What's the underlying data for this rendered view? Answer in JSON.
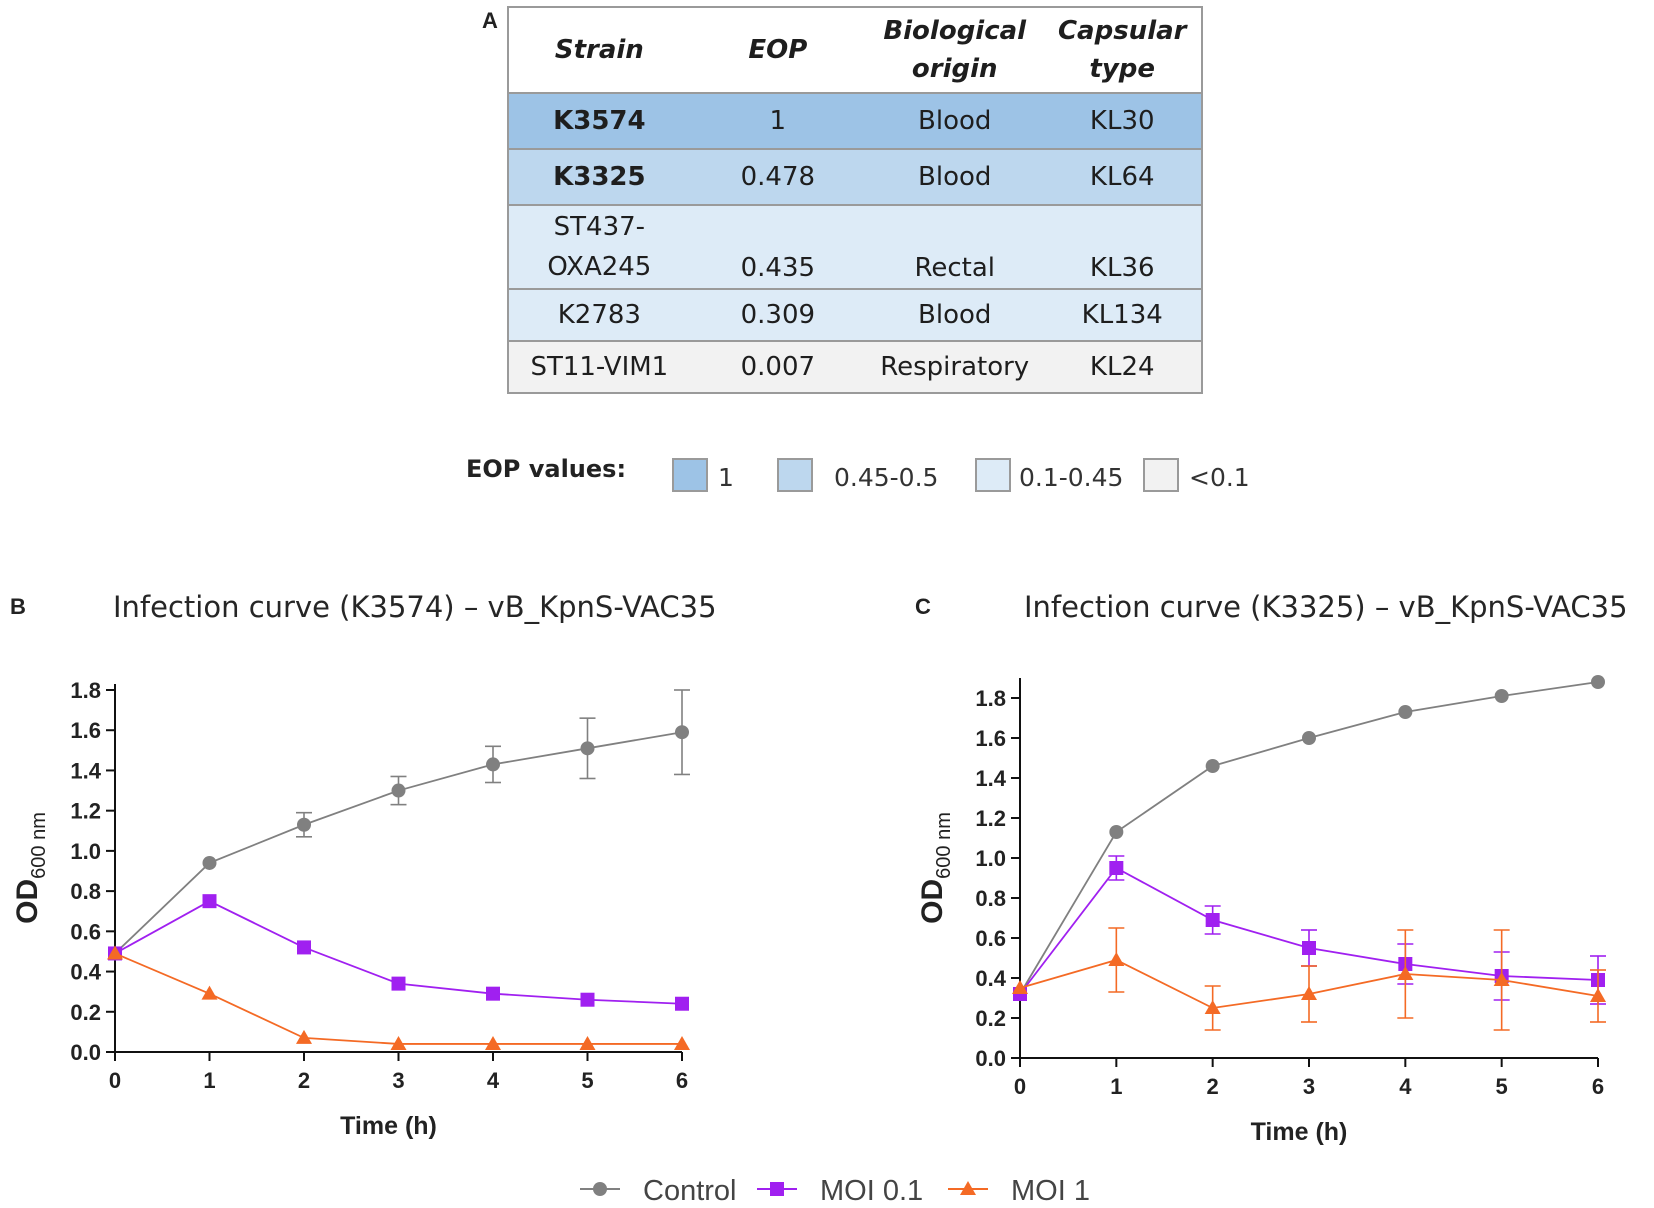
{
  "panel_labels": {
    "a": "A",
    "b": "B",
    "c": "C"
  },
  "table": {
    "headers": {
      "strain": "Strain",
      "eop": "EOP",
      "origin_1": "Biological",
      "origin_2": "origin",
      "capsular_1": "Capsular",
      "capsular_2": "type"
    },
    "rows": [
      {
        "strain_1": "K3574",
        "strain_2": "",
        "eop": "1",
        "origin": "Blood",
        "capsular": "KL30",
        "bold": true,
        "color": "#9dc3e6"
      },
      {
        "strain_1": "K3325",
        "strain_2": "",
        "eop": "0.478",
        "origin": "Blood",
        "capsular": "KL64",
        "bold": true,
        "color": "#bdd7ee"
      },
      {
        "strain_1": "ST437-",
        "strain_2": "OXA245",
        "eop": "0.435",
        "origin": "Rectal",
        "capsular": "KL36",
        "bold": false,
        "color": "#ddebf7"
      },
      {
        "strain_1": "K2783",
        "strain_2": "",
        "eop": "0.309",
        "origin": "Blood",
        "capsular": "KL134",
        "bold": false,
        "color": "#ddebf7"
      },
      {
        "strain_1": "ST11-VIM1",
        "strain_2": "",
        "eop": "0.007",
        "origin": "Respiratory",
        "capsular": "KL24",
        "bold": false,
        "color": "#f2f2f2"
      }
    ]
  },
  "eop_legend": {
    "title": "EOP values:",
    "items": [
      {
        "label": "1",
        "color": "#9dc3e6"
      },
      {
        "label": "0.45-0.5",
        "color": "#bdd7ee"
      },
      {
        "label": "0.1-0.45",
        "color": "#ddebf7"
      },
      {
        "label": "<0.1",
        "color": "#f2f2f2"
      }
    ]
  },
  "series_legend": [
    "Control",
    "MOI 0.1",
    "MOI 1"
  ],
  "series_colors": {
    "Control": "#808080",
    "MOI 0.1": "#a020f0",
    "MOI 1": "#f46a25"
  },
  "chart_data": [
    {
      "type": "line",
      "title": "Infection curve (K3574) – vB_KpnS-VAC35",
      "xlabel": "Time (h)",
      "ylabel": "OD",
      "ylabel_sub": "600 nm",
      "x": [
        0,
        1,
        2,
        3,
        4,
        5,
        6
      ],
      "xlim": [
        0,
        6
      ],
      "ylim": [
        0,
        1.8
      ],
      "yticks": [
        "0.0",
        "0.2",
        "0.4",
        "0.6",
        "0.8",
        "1.0",
        "1.2",
        "1.4",
        "1.6",
        "1.8"
      ],
      "xticks": [
        "0",
        "1",
        "2",
        "3",
        "4",
        "5",
        "6"
      ],
      "series": [
        {
          "name": "Control",
          "marker": "circle",
          "values": [
            0.49,
            0.94,
            1.13,
            1.3,
            1.43,
            1.51,
            1.59
          ],
          "errors": [
            0,
            0,
            0.06,
            0.07,
            0.09,
            0.15,
            0.21
          ]
        },
        {
          "name": "MOI 0.1",
          "marker": "square",
          "values": [
            0.49,
            0.75,
            0.52,
            0.34,
            0.29,
            0.26,
            0.24
          ],
          "errors": [
            0,
            0,
            0,
            0,
            0,
            0,
            0
          ]
        },
        {
          "name": "MOI 1",
          "marker": "triangle",
          "values": [
            0.49,
            0.29,
            0.07,
            0.04,
            0.04,
            0.04,
            0.04
          ],
          "errors": [
            0,
            0,
            0,
            0,
            0,
            0,
            0
          ]
        }
      ]
    },
    {
      "type": "line",
      "title": "Infection curve (K3325) – vB_KpnS-VAC35",
      "xlabel": "Time (h)",
      "ylabel": "OD",
      "ylabel_sub": "600 nm",
      "x": [
        0,
        1,
        2,
        3,
        4,
        5,
        6
      ],
      "xlim": [
        0,
        6
      ],
      "ylim": [
        0,
        1.9
      ],
      "yticks": [
        "0.0",
        "0.2",
        "0.4",
        "0.6",
        "0.8",
        "1.0",
        "1.2",
        "1.4",
        "1.6",
        "1.8"
      ],
      "xticks": [
        "0",
        "1",
        "2",
        "3",
        "4",
        "5",
        "6"
      ],
      "series": [
        {
          "name": "Control",
          "marker": "circle",
          "values": [
            0.32,
            1.13,
            1.46,
            1.6,
            1.73,
            1.81,
            1.88
          ],
          "errors": [
            0,
            0,
            0,
            0,
            0,
            0,
            0
          ]
        },
        {
          "name": "MOI 0.1",
          "marker": "square",
          "values": [
            0.32,
            0.95,
            0.69,
            0.55,
            0.47,
            0.41,
            0.39
          ],
          "errors": [
            0,
            0.06,
            0.07,
            0.09,
            0.1,
            0.12,
            0.12
          ]
        },
        {
          "name": "MOI 1",
          "marker": "triangle",
          "values": [
            0.35,
            0.49,
            0.25,
            0.32,
            0.42,
            0.39,
            0.31
          ],
          "errors": [
            0,
            0.16,
            0.11,
            0.14,
            0.22,
            0.25,
            0.13
          ]
        }
      ]
    }
  ]
}
